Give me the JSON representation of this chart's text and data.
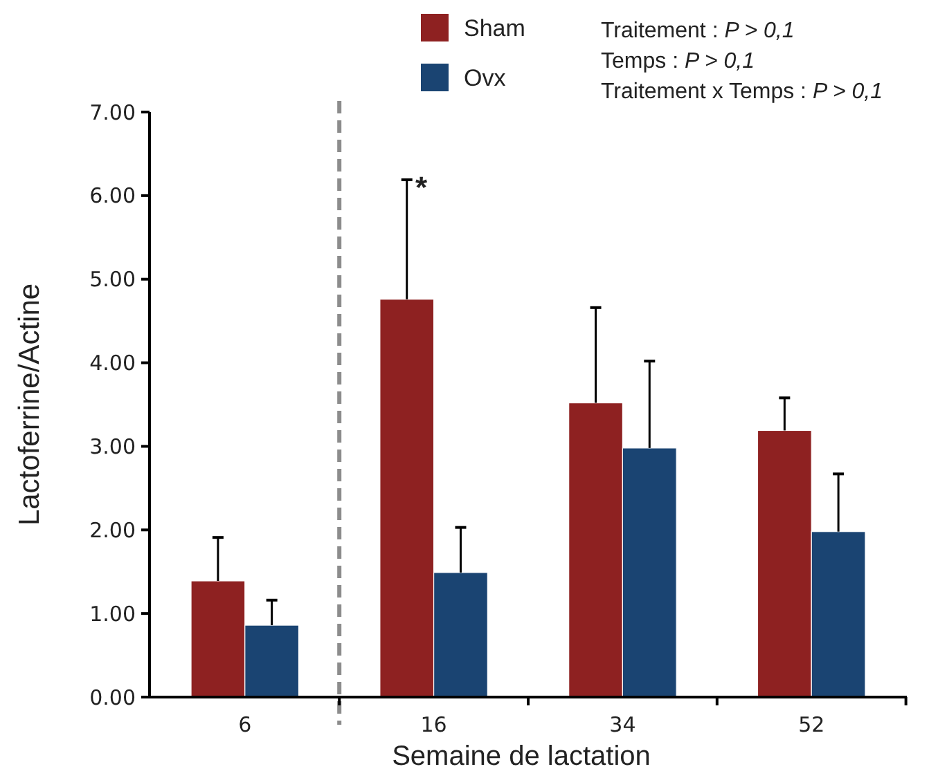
{
  "chart_data": {
    "type": "bar",
    "xlabel": "Semaine de lactation",
    "ylabel": "Lactoferrine/Actine",
    "categories": [
      "6",
      "16",
      "34",
      "52"
    ],
    "series": [
      {
        "name": "Sham",
        "color": "#8e2121",
        "values": [
          1.39,
          4.76,
          3.52,
          3.19
        ],
        "errors": [
          [
            1.39,
            1.91
          ],
          [
            4.76,
            6.19
          ],
          [
            3.52,
            4.66
          ],
          [
            3.19,
            3.58
          ]
        ]
      },
      {
        "name": "Ovx",
        "color": "#1a4472",
        "values": [
          0.86,
          1.49,
          2.98,
          1.98
        ],
        "errors": [
          [
            0.86,
            1.16
          ],
          [
            1.49,
            2.03
          ],
          [
            2.98,
            4.02
          ],
          [
            1.98,
            2.67
          ]
        ]
      }
    ],
    "ylim": [
      0,
      7
    ],
    "yticks": [
      {
        "value": 0,
        "label": "0.00"
      },
      {
        "value": 1,
        "label": "1.00"
      },
      {
        "value": 2,
        "label": "2.00"
      },
      {
        "value": 3,
        "label": "3.00"
      },
      {
        "value": 4,
        "label": "4.00"
      },
      {
        "value": 5,
        "label": "5.00"
      },
      {
        "value": 6,
        "label": "6.00"
      },
      {
        "value": 7,
        "label": "7.00"
      }
    ],
    "grid": false,
    "legend": "top",
    "annotations": [
      "*",
      "Traitement : P > 0,1",
      "Temps : P > 0,1",
      "Traitement x Temps : P > 0,1"
    ]
  }
}
